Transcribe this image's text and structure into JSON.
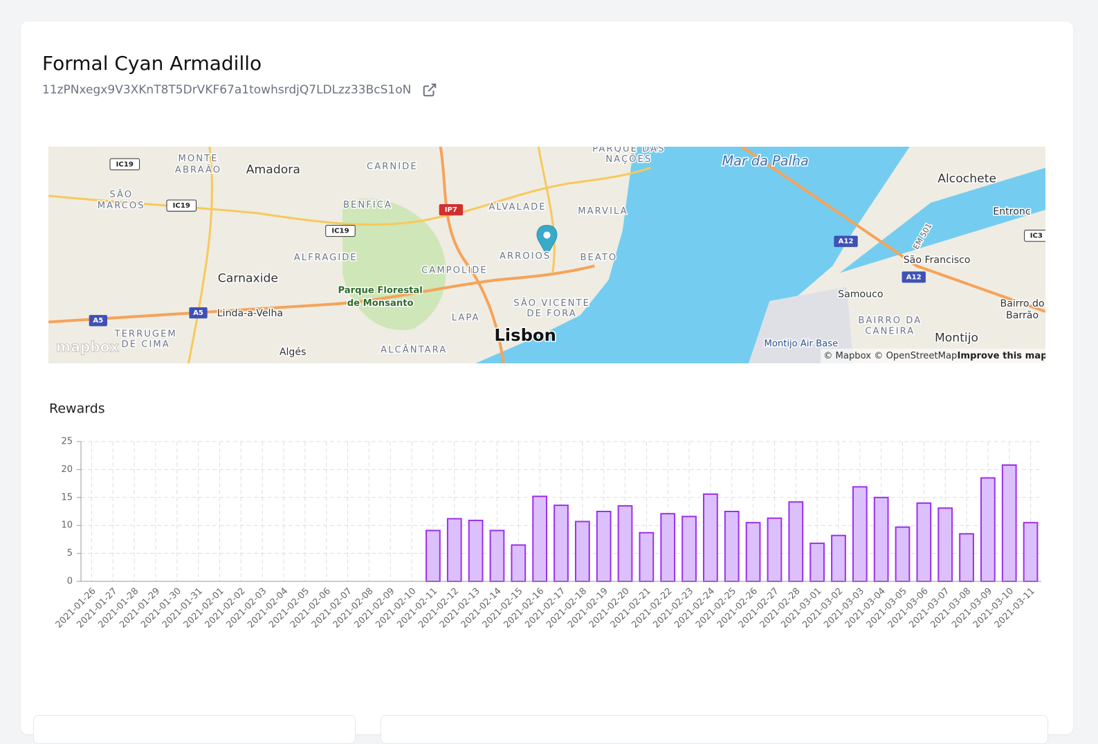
{
  "header": {
    "title": "Formal Cyan Armadillo",
    "address": "11zPNxegx9V3XKnT8T5DrVKF67a1towhsrdjQ7LDLzz33BcS1oN"
  },
  "map": {
    "labels": [
      "Amadora",
      "Carnaxide",
      "Linda-a-Velha",
      "Algés",
      "Lisbon",
      "Parque Florestal",
      "de Monsanto",
      "BENFICA",
      "CARNIDE",
      "ALVALADE",
      "MARVILA",
      "ARROIOS",
      "BEATO",
      "ALFRAGIDE",
      "CAMPOLIDE",
      "LAPA",
      "SÃO VICENTE",
      "DE FORA",
      "ALCÂNTARA",
      "MONTE",
      "ABRAÃO",
      "SÃO",
      "MARCOS",
      "TERRUGEM",
      "DE CIMA",
      "PARQUE DAS",
      "NAÇÕES",
      "Mar da Palha",
      "Alcochete",
      "São Francisco",
      "Samouco",
      "BAIRRO DA",
      "CANEIRA",
      "Montijo",
      "Montijo Air Base",
      "Entronc",
      "Bairro do",
      "Barrão",
      "IC19",
      "IC19",
      "IC19",
      "IP7",
      "A5",
      "A5",
      "A12",
      "A12",
      "IC3",
      "EM 501"
    ],
    "logo": "mapbox",
    "attribution": "© Mapbox © OpenStreetMap",
    "improve": "Improve this map"
  },
  "chart_data": {
    "type": "bar",
    "title": "Rewards",
    "categories": [
      "2021-01-26",
      "2021-01-27",
      "2021-01-28",
      "2021-01-29",
      "2021-01-30",
      "2021-01-31",
      "2021-02-01",
      "2021-02-02",
      "2021-02-03",
      "2021-02-04",
      "2021-02-05",
      "2021-02-06",
      "2021-02-07",
      "2021-02-08",
      "2021-02-09",
      "2021-02-10",
      "2021-02-11",
      "2021-02-12",
      "2021-02-13",
      "2021-02-14",
      "2021-02-15",
      "2021-02-16",
      "2021-02-17",
      "2021-02-18",
      "2021-02-19",
      "2021-02-20",
      "2021-02-21",
      "2021-02-22",
      "2021-02-23",
      "2021-02-24",
      "2021-02-25",
      "2021-02-26",
      "2021-02-27",
      "2021-02-28",
      "2021-03-01",
      "2021-03-02",
      "2021-03-03",
      "2021-03-04",
      "2021-03-05",
      "2021-03-06",
      "2021-03-07",
      "2021-03-08",
      "2021-03-09",
      "2021-03-10",
      "2021-03-11"
    ],
    "values": [
      0,
      0,
      0,
      0,
      0,
      0,
      0,
      0,
      0,
      0,
      0,
      0,
      0,
      0,
      0,
      0,
      9.1,
      11.2,
      10.9,
      9.1,
      6.5,
      15.2,
      13.6,
      10.7,
      12.5,
      13.5,
      8.7,
      12.1,
      11.6,
      15.6,
      12.5,
      10.5,
      11.3,
      14.2,
      6.8,
      8.2,
      16.9,
      15.0,
      9.7,
      14.0,
      13.1,
      8.5,
      18.5,
      20.8,
      10.5
    ],
    "color": "#dcc0fb",
    "edge_color": "#9b30f0",
    "ylim": [
      0,
      25
    ],
    "yticks": [
      0,
      5,
      10,
      15,
      20,
      25
    ],
    "grid": true
  }
}
